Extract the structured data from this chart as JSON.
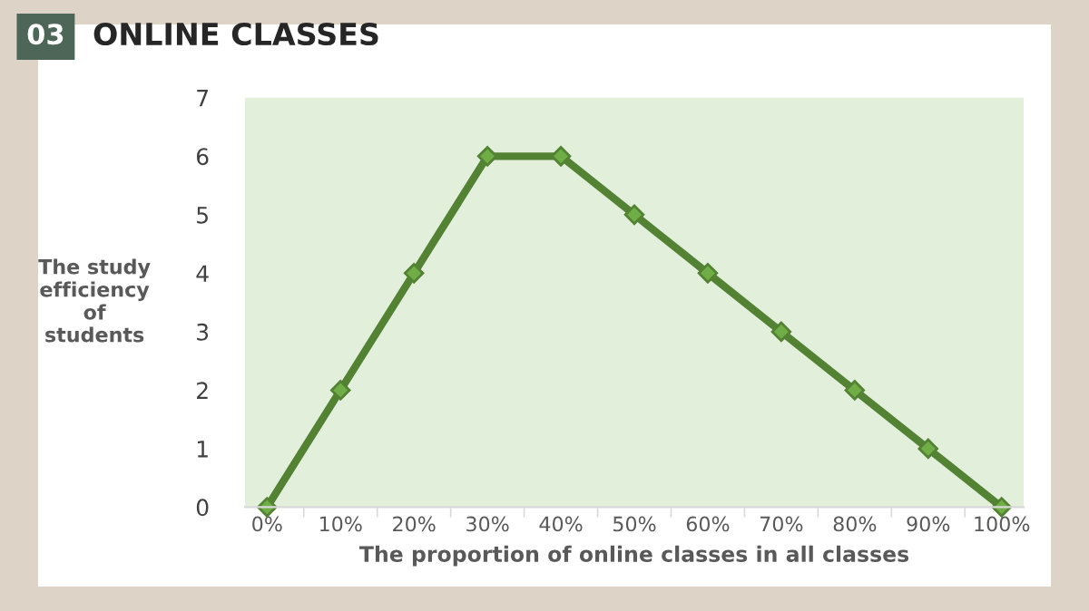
{
  "chart_data": {
    "type": "line",
    "title": "ONLINE CLASSES",
    "annotations": [
      "03"
    ],
    "xlabel": "The proportion of online classes in all classes",
    "ylabel": "The study\nefficiency\nof\nstudents",
    "categories": [
      "0%",
      "10%",
      "20%",
      "30%",
      "40%",
      "50%",
      "60%",
      "70%",
      "80%",
      "90%",
      "100%"
    ],
    "series": [
      {
        "color": "#548235",
        "values": [
          0,
          2,
          4,
          6,
          6,
          5,
          4,
          3,
          2,
          1,
          0
        ]
      }
    ],
    "ylim": [
      0,
      7
    ],
    "yticks": [
      0,
      1,
      2,
      3,
      4,
      5,
      6,
      7
    ],
    "grid": false,
    "legend": false,
    "marker": "diamond",
    "line_style": "solid"
  }
}
